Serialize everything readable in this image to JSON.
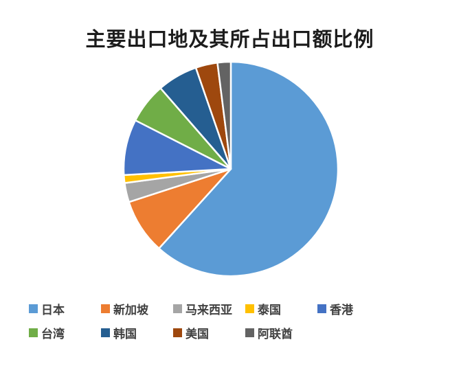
{
  "title": "主要出口地及其所占出口额比例",
  "chart_data": {
    "type": "pie",
    "title": "主要出口地及其所占出口额比例",
    "categories": [
      "日本",
      "新加坡",
      "马来西亚",
      "泰国",
      "香港",
      "台湾",
      "韩国",
      "美国",
      "阿联酋"
    ],
    "values": [
      61.7,
      8.3,
      2.9,
      1.2,
      8.4,
      6.1,
      6.1,
      3.3,
      2.0
    ],
    "unit": "percent-of-export-value",
    "colors": [
      "#5B9BD5",
      "#ED7D31",
      "#A5A5A5",
      "#FFC000",
      "#4472C4",
      "#70AD47",
      "#255E91",
      "#9E480E",
      "#636363"
    ],
    "start_angle_deg": 0,
    "direction": "clockwise",
    "slice_border_color": "#ffffff",
    "legend_position": "bottom",
    "data_labels_shown": false,
    "title_color": "#1c1c1c",
    "legend_text_color": "#404040",
    "background_color": "#ffffff"
  }
}
